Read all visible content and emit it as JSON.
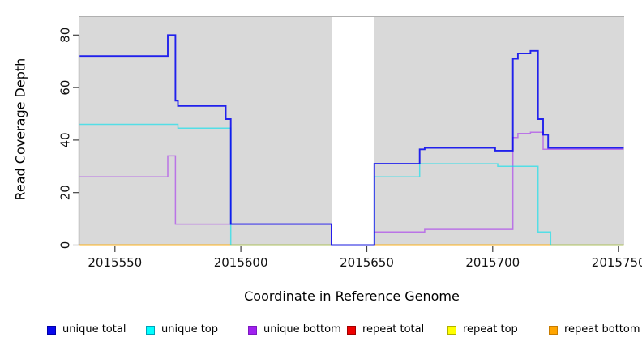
{
  "figure": {
    "xlabel": "Coordinate in Reference Genome",
    "ylabel": "Read Coverage Depth"
  },
  "chart_data": {
    "type": "line",
    "subtype": "step-after",
    "title": "",
    "xlabel": "Coordinate in Reference Genome",
    "ylabel": "Read Coverage Depth",
    "xlim": [
      2015535.9,
      2015752.2
    ],
    "ylim": [
      0,
      87.2
    ],
    "x_ticks": [
      2015550,
      2015600,
      2015650,
      2015700,
      2015750
    ],
    "y_ticks": [
      0,
      20,
      40,
      60,
      80
    ],
    "grid": "off",
    "panel_background": "#d9d9d9",
    "no_data_region": {
      "x_start": 2015636,
      "x_end": 2015653
    },
    "series": [
      {
        "name": "repeat total",
        "color": "#dd0000",
        "opacity": 1,
        "width": 1.4,
        "points": [
          [
            2015536,
            0
          ],
          [
            2015752,
            0
          ]
        ]
      },
      {
        "name": "repeat top",
        "color": "#ffff00",
        "opacity": 1,
        "width": 1.4,
        "points": [
          [
            2015536,
            0
          ],
          [
            2015752,
            0
          ]
        ]
      },
      {
        "name": "repeat bottom",
        "color": "#ffa500",
        "opacity": 1,
        "width": 1.6,
        "points": [
          [
            2015536,
            0
          ],
          [
            2015752,
            0
          ]
        ]
      },
      {
        "name": "unique bottom",
        "color": "#a020f0",
        "opacity": 0.55,
        "width": 1.5,
        "points": [
          [
            2015536,
            26
          ],
          [
            2015571,
            34
          ],
          [
            2015574,
            8
          ],
          [
            2015636,
            0
          ],
          [
            2015653,
            5
          ],
          [
            2015673,
            6
          ],
          [
            2015708,
            41
          ],
          [
            2015710,
            42.5
          ],
          [
            2015715,
            43
          ],
          [
            2015720,
            36.5
          ],
          [
            2015752,
            36.5
          ]
        ]
      },
      {
        "name": "unique top",
        "color": "#00e0ee",
        "opacity": 0.62,
        "width": 1.5,
        "points": [
          [
            2015536,
            46
          ],
          [
            2015575,
            44.5
          ],
          [
            2015596,
            0
          ],
          [
            2015653,
            26
          ],
          [
            2015671,
            31
          ],
          [
            2015702,
            30
          ],
          [
            2015718,
            5
          ],
          [
            2015723,
            0
          ],
          [
            2015752,
            0
          ]
        ]
      },
      {
        "name": "unique total",
        "color": "#0000ee",
        "opacity": 0.85,
        "width": 1.9,
        "points": [
          [
            2015536,
            72
          ],
          [
            2015571,
            80
          ],
          [
            2015574,
            55
          ],
          [
            2015575,
            53
          ],
          [
            2015594,
            48
          ],
          [
            2015596,
            8
          ],
          [
            2015636,
            0
          ],
          [
            2015653,
            31
          ],
          [
            2015671,
            36.5
          ],
          [
            2015673,
            37
          ],
          [
            2015701,
            36
          ],
          [
            2015708,
            71
          ],
          [
            2015710,
            73
          ],
          [
            2015715,
            74
          ],
          [
            2015718,
            48
          ],
          [
            2015720,
            42
          ],
          [
            2015722,
            37
          ],
          [
            2015752,
            37
          ]
        ]
      }
    ],
    "legend": [
      {
        "label": "unique total",
        "fill": "#0808ee",
        "border": "#0000a8"
      },
      {
        "label": "unique top",
        "fill": "#00ffff",
        "border": "#00a0b8"
      },
      {
        "label": "unique bottom",
        "fill": "#a020f0",
        "border": "#7d18c0"
      },
      {
        "label": "repeat total",
        "fill": "#ee0000",
        "border": "#a00000"
      },
      {
        "label": "repeat top",
        "fill": "#ffff00",
        "border": "#b0b000"
      },
      {
        "label": "repeat bottom",
        "fill": "#ffa500",
        "border": "#c77c00"
      }
    ],
    "legend_position": "bottom"
  }
}
